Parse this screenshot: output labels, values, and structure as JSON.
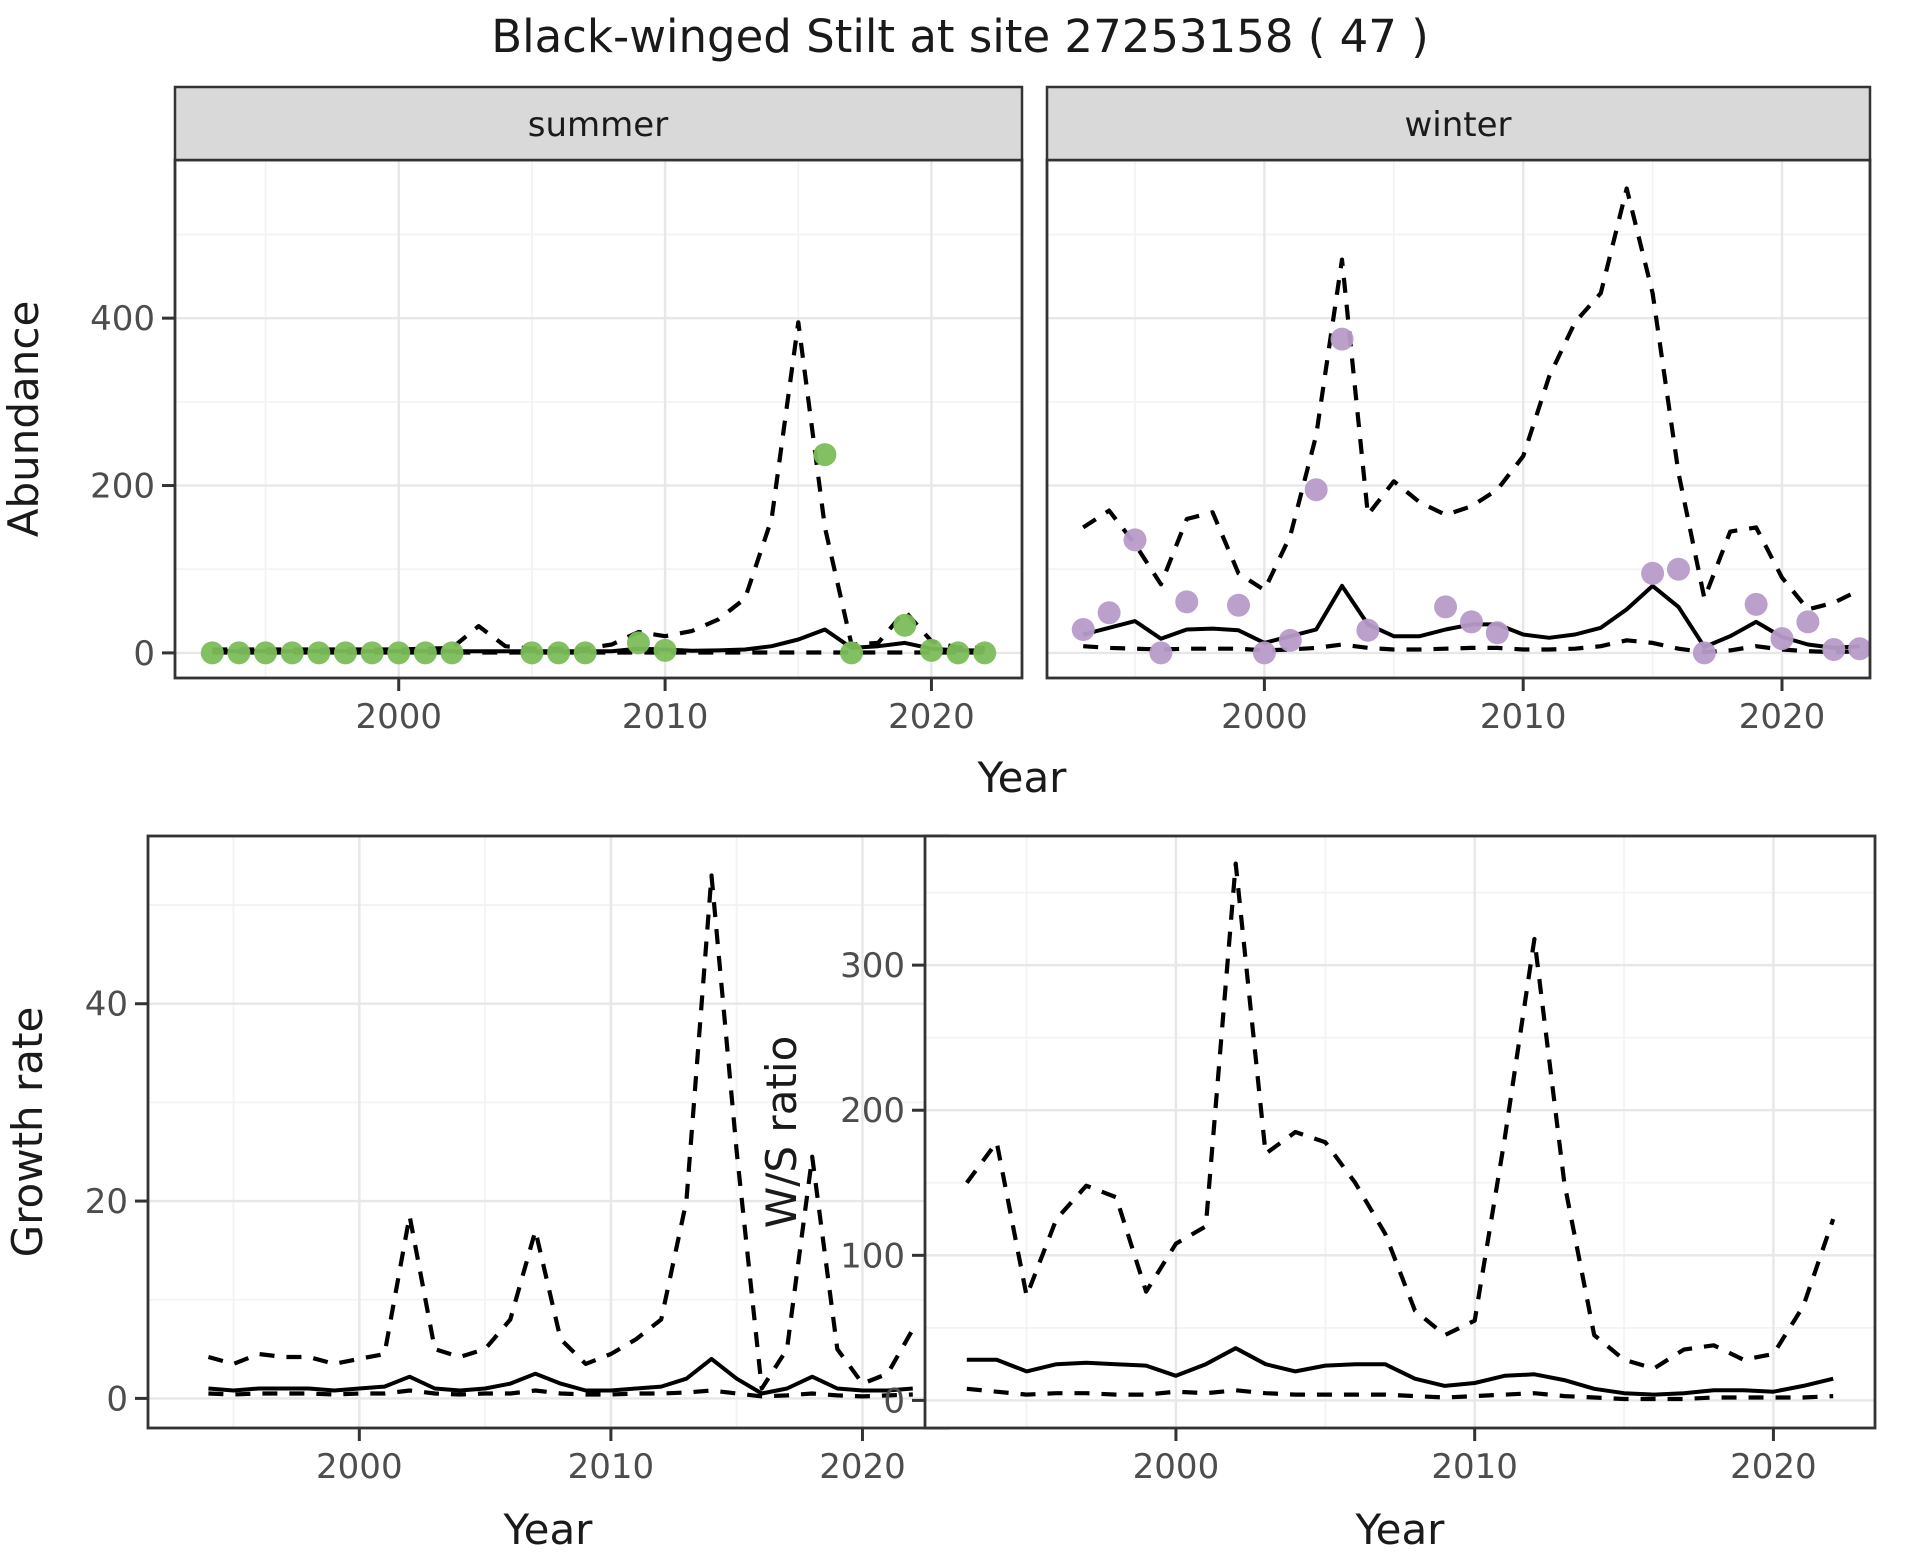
{
  "title": "Black-winged Stilt at site 27253158 ( 47 )",
  "colors": {
    "summer_point": "#7bbd58",
    "winter_point": "#b89bc9",
    "line": "#000000",
    "strip_bg": "#d9d9d9",
    "panel_border": "#333333",
    "grid_major": "#e7e7e7",
    "grid_minor": "#f3f3f3",
    "axis_text": "#4d4d4d"
  },
  "chart_data": [
    {
      "type": "line",
      "panel": "abundance-summer",
      "facet_label": "summer",
      "ylabel": "Abundance",
      "xlabel": "Year",
      "x_ticks": [
        2000,
        2010,
        2020
      ],
      "y_ticks": [
        0,
        200,
        400
      ],
      "xlim": [
        1991.6,
        2023.4
      ],
      "ylim": [
        -30,
        589
      ],
      "grid": true,
      "legend": "none",
      "series": [
        {
          "name": "upper-ci",
          "style": "dashed",
          "x": [
            1993,
            1994,
            1995,
            1996,
            1997,
            1998,
            1999,
            2000,
            2001,
            2002,
            2003,
            2004,
            2005,
            2006,
            2007,
            2008,
            2009,
            2010,
            2011,
            2012,
            2013,
            2014,
            2015,
            2016,
            2017,
            2018,
            2019,
            2020,
            2021,
            2022
          ],
          "y": [
            4,
            4,
            4,
            4,
            4,
            4,
            4,
            4,
            5,
            6,
            32,
            8,
            5,
            5,
            5,
            10,
            25,
            20,
            26,
            40,
            65,
            160,
            395,
            150,
            10,
            12,
            50,
            14,
            6,
            6
          ]
        },
        {
          "name": "lower-ci",
          "style": "dashed",
          "x": [
            1993,
            1994,
            1995,
            1996,
            1997,
            1998,
            1999,
            2000,
            2001,
            2002,
            2003,
            2004,
            2005,
            2006,
            2007,
            2008,
            2009,
            2010,
            2011,
            2012,
            2013,
            2014,
            2015,
            2016,
            2017,
            2018,
            2019,
            2020,
            2021,
            2022
          ],
          "y": [
            0.5,
            0.5,
            0.5,
            0.5,
            0.5,
            0.5,
            0.5,
            0.5,
            0.5,
            0.5,
            0.5,
            0.5,
            0.5,
            0.5,
            0.5,
            0.5,
            0.5,
            0.5,
            0.5,
            0.5,
            0.5,
            0.5,
            0.5,
            0.5,
            0.5,
            0.5,
            0.5,
            0.5,
            0.5,
            0.5
          ]
        },
        {
          "name": "model-fit",
          "style": "solid",
          "x": [
            1993,
            1994,
            1995,
            1996,
            1997,
            1998,
            1999,
            2000,
            2001,
            2002,
            2003,
            2004,
            2005,
            2006,
            2007,
            2008,
            2009,
            2010,
            2011,
            2012,
            2013,
            2014,
            2015,
            2016,
            2017,
            2018,
            2019,
            2020,
            2021,
            2022
          ],
          "y": [
            2,
            2,
            2,
            2,
            2,
            2,
            2,
            2,
            2,
            2,
            2,
            2,
            2,
            2,
            2,
            2,
            5,
            4,
            2.5,
            3,
            4,
            8,
            16,
            28,
            6,
            8,
            12,
            5,
            3,
            3
          ]
        },
        {
          "name": "observed-counts",
          "style": "points",
          "color_key": "summer_point",
          "x": [
            1993,
            1994,
            1995,
            1996,
            1997,
            1998,
            1999,
            2000,
            2001,
            2002,
            2005,
            2006,
            2007,
            2009,
            2010,
            2016,
            2017,
            2019,
            2020,
            2021,
            2022
          ],
          "y": [
            0,
            0,
            0,
            0,
            0,
            0,
            0,
            0,
            0,
            0,
            0,
            0,
            0,
            12,
            3,
            237,
            0,
            33,
            3,
            0,
            0
          ]
        }
      ]
    },
    {
      "type": "line",
      "panel": "abundance-winter",
      "facet_label": "winter",
      "ylabel": "Abundance",
      "xlabel": "Year",
      "x_ticks": [
        2000,
        2010,
        2020
      ],
      "y_ticks": [
        0,
        200,
        400
      ],
      "xlim": [
        1991.6,
        2023.4
      ],
      "ylim": [
        -30,
        589
      ],
      "grid": true,
      "legend": "none",
      "series": [
        {
          "name": "upper-ci",
          "style": "dashed",
          "x": [
            1993,
            1994,
            1995,
            1996,
            1997,
            1998,
            1999,
            2000,
            2001,
            2002,
            2003,
            2004,
            2005,
            2006,
            2007,
            2008,
            2009,
            2010,
            2011,
            2012,
            2013,
            2014,
            2015,
            2016,
            2017,
            2018,
            2019,
            2020,
            2021,
            2022,
            2023
          ],
          "y": [
            150,
            170,
            130,
            82,
            160,
            168,
            95,
            75,
            140,
            260,
            470,
            165,
            205,
            180,
            165,
            175,
            195,
            235,
            330,
            395,
            430,
            555,
            430,
            215,
            65,
            145,
            150,
            90,
            52,
            60,
            75
          ]
        },
        {
          "name": "lower-ci",
          "style": "dashed",
          "x": [
            1993,
            1994,
            1995,
            1996,
            1997,
            1998,
            1999,
            2000,
            2001,
            2002,
            2003,
            2004,
            2005,
            2006,
            2007,
            2008,
            2009,
            2010,
            2011,
            2012,
            2013,
            2014,
            2015,
            2016,
            2017,
            2018,
            2019,
            2020,
            2021,
            2022,
            2023
          ],
          "y": [
            8,
            6,
            5,
            4,
            5,
            5,
            5,
            3,
            4,
            6,
            10,
            6,
            4,
            4,
            5,
            6,
            6,
            4,
            4,
            5,
            8,
            15,
            12,
            5,
            1,
            3,
            8,
            4,
            2,
            1,
            2
          ]
        },
        {
          "name": "model-fit",
          "style": "solid",
          "x": [
            1993,
            1994,
            1995,
            1996,
            1997,
            1998,
            1999,
            2000,
            2001,
            2002,
            2003,
            2004,
            2005,
            2006,
            2007,
            2008,
            2009,
            2010,
            2011,
            2012,
            2013,
            2014,
            2015,
            2016,
            2017,
            2018,
            2019,
            2020,
            2021,
            2022,
            2023
          ],
          "y": [
            22,
            30,
            38,
            17,
            28,
            29,
            27,
            12,
            20,
            28,
            80,
            34,
            20,
            20,
            28,
            34,
            34,
            22,
            18,
            22,
            30,
            52,
            80,
            55,
            7,
            20,
            37,
            19,
            10,
            6,
            8
          ]
        },
        {
          "name": "observed-counts",
          "style": "points",
          "color_key": "winter_point",
          "x": [
            1993,
            1994,
            1995,
            1996,
            1997,
            1999,
            2000,
            2001,
            2002,
            2003,
            2004,
            2007,
            2008,
            2009,
            2015,
            2016,
            2017,
            2019,
            2020,
            2021,
            2022,
            2023
          ],
          "y": [
            28,
            48,
            135,
            0,
            61,
            57,
            0,
            15,
            195,
            375,
            27,
            55,
            37,
            24,
            95,
            100,
            0,
            58,
            17,
            37,
            4,
            5
          ]
        }
      ]
    },
    {
      "type": "line",
      "panel": "growth-rate",
      "facet_label": "",
      "ylabel": "Growth rate",
      "xlabel": "Year",
      "x_ticks": [
        2000,
        2010,
        2020
      ],
      "y_ticks": [
        0,
        20,
        40
      ],
      "xlim": [
        1991.6,
        2023.4
      ],
      "ylim": [
        -3,
        57
      ],
      "grid": true,
      "legend": "none",
      "series": [
        {
          "name": "upper-ci",
          "style": "dashed",
          "x": [
            1994,
            1995,
            1996,
            1997,
            1998,
            1999,
            2000,
            2001,
            2002,
            2003,
            2004,
            2005,
            2006,
            2007,
            2008,
            2009,
            2010,
            2011,
            2012,
            2013,
            2014,
            2015,
            2016,
            2017,
            2018,
            2019,
            2020,
            2021,
            2022
          ],
          "y": [
            4.2,
            3.5,
            4.5,
            4.2,
            4.2,
            3.5,
            4,
            4.5,
            18.5,
            5,
            4.2,
            5,
            8,
            17,
            6,
            3.5,
            4.5,
            6,
            8,
            20,
            53,
            25,
            1,
            5,
            24.5,
            5,
            1.5,
            2.5,
            7
          ]
        },
        {
          "name": "lower-ci",
          "style": "dashed",
          "x": [
            1994,
            1995,
            1996,
            1997,
            1998,
            1999,
            2000,
            2001,
            2002,
            2003,
            2004,
            2005,
            2006,
            2007,
            2008,
            2009,
            2010,
            2011,
            2012,
            2013,
            2014,
            2015,
            2016,
            2017,
            2018,
            2019,
            2020,
            2021,
            2022
          ],
          "y": [
            0.5,
            0.4,
            0.5,
            0.5,
            0.5,
            0.4,
            0.5,
            0.5,
            0.8,
            0.5,
            0.4,
            0.5,
            0.5,
            0.8,
            0.5,
            0.4,
            0.4,
            0.5,
            0.5,
            0.6,
            0.8,
            0.5,
            0.2,
            0.3,
            0.5,
            0.3,
            0.2,
            0.3,
            0.4
          ]
        },
        {
          "name": "model-fit",
          "style": "solid",
          "x": [
            1994,
            1995,
            1996,
            1997,
            1998,
            1999,
            2000,
            2001,
            2002,
            2003,
            2004,
            2005,
            2006,
            2007,
            2008,
            2009,
            2010,
            2011,
            2012,
            2013,
            2014,
            2015,
            2016,
            2017,
            2018,
            2019,
            2020,
            2021,
            2022
          ],
          "y": [
            1,
            0.8,
            1,
            1,
            1,
            0.8,
            1,
            1.2,
            2.2,
            1,
            0.8,
            1,
            1.5,
            2.5,
            1.5,
            0.8,
            0.8,
            1,
            1.2,
            2,
            4,
            2,
            0.5,
            1,
            2.2,
            1,
            0.8,
            0.8,
            1
          ]
        }
      ]
    },
    {
      "type": "line",
      "panel": "ws-ratio",
      "facet_label": "",
      "ylabel": "W/S ratio",
      "xlabel": "Year",
      "x_ticks": [
        2000,
        2010,
        2020
      ],
      "y_ticks": [
        0,
        100,
        200,
        300
      ],
      "xlim": [
        1991.6,
        2023.4
      ],
      "ylim": [
        -19,
        389
      ],
      "grid": true,
      "legend": "none",
      "series": [
        {
          "name": "upper-ci",
          "style": "dashed",
          "x": [
            1993,
            1994,
            1995,
            1996,
            1997,
            1998,
            1999,
            2000,
            2001,
            2002,
            2003,
            2004,
            2005,
            2006,
            2007,
            2008,
            2009,
            2010,
            2011,
            2012,
            2013,
            2014,
            2015,
            2016,
            2017,
            2018,
            2019,
            2020,
            2021,
            2022
          ],
          "y": [
            150,
            178,
            72,
            125,
            148,
            140,
            75,
            108,
            120,
            370,
            170,
            185,
            178,
            150,
            115,
            62,
            45,
            55,
            180,
            318,
            150,
            45,
            28,
            22,
            35,
            38,
            28,
            32,
            65,
            125
          ]
        },
        {
          "name": "lower-ci",
          "style": "dashed",
          "x": [
            1993,
            1994,
            1995,
            1996,
            1997,
            1998,
            1999,
            2000,
            2001,
            2002,
            2003,
            2004,
            2005,
            2006,
            2007,
            2008,
            2009,
            2010,
            2011,
            2012,
            2013,
            2014,
            2015,
            2016,
            2017,
            2018,
            2019,
            2020,
            2021,
            2022
          ],
          "y": [
            8,
            6,
            4,
            5,
            5,
            4,
            4,
            6,
            5,
            7,
            5,
            4,
            4,
            4,
            4,
            3,
            2,
            3,
            4,
            5,
            3,
            2,
            1,
            1,
            1,
            2,
            2,
            2,
            2,
            3
          ]
        },
        {
          "name": "model-fit",
          "style": "solid",
          "x": [
            1993,
            1994,
            1995,
            1996,
            1997,
            1998,
            1999,
            2000,
            2001,
            2002,
            2003,
            2004,
            2005,
            2006,
            2007,
            2008,
            2009,
            2010,
            2011,
            2012,
            2013,
            2014,
            2015,
            2016,
            2017,
            2018,
            2019,
            2020,
            2021,
            2022
          ],
          "y": [
            28,
            28,
            20,
            25,
            26,
            25,
            24,
            17,
            25,
            36,
            25,
            20,
            24,
            25,
            25,
            15,
            10,
            12,
            17,
            18,
            14,
            8,
            5,
            4,
            5,
            7,
            7,
            6,
            10,
            15
          ]
        }
      ]
    }
  ]
}
